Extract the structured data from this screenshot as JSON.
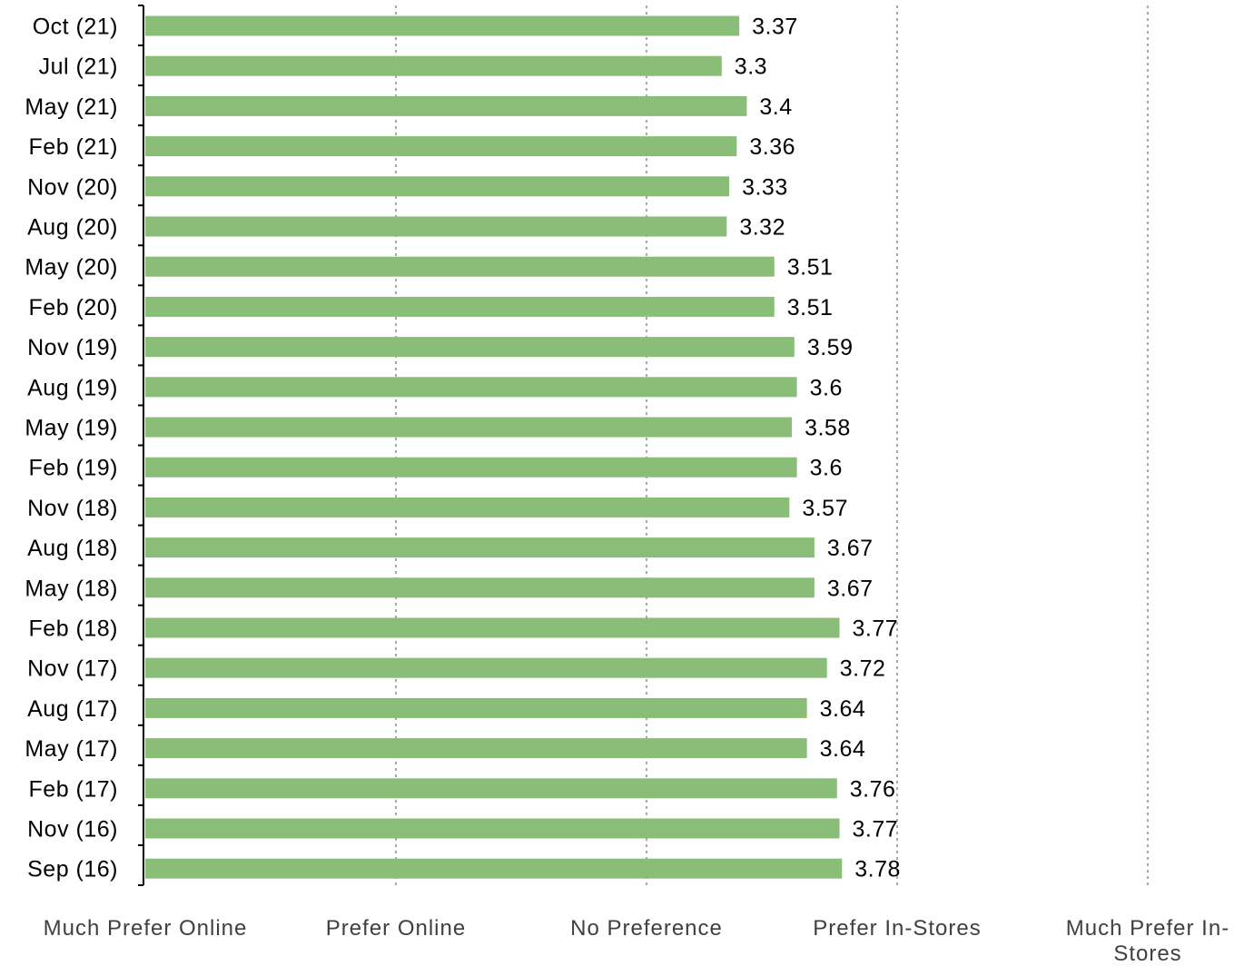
{
  "chart_data": {
    "type": "bar",
    "orientation": "horizontal",
    "categories": [
      "Oct (21)",
      "Jul (21)",
      "May (21)",
      "Feb (21)",
      "Nov (20)",
      "Aug (20)",
      "May (20)",
      "Feb (20)",
      "Nov (19)",
      "Aug (19)",
      "May (19)",
      "Feb (19)",
      "Nov (18)",
      "Aug (18)",
      "May (18)",
      "Feb (18)",
      "Nov (17)",
      "Aug (17)",
      "May (17)",
      "Feb (17)",
      "Nov (16)",
      "Sep (16)"
    ],
    "values": [
      3.37,
      3.3,
      3.4,
      3.36,
      3.33,
      3.32,
      3.51,
      3.51,
      3.59,
      3.6,
      3.58,
      3.6,
      3.57,
      3.67,
      3.67,
      3.77,
      3.72,
      3.64,
      3.64,
      3.76,
      3.77,
      3.78
    ],
    "value_labels": [
      "3.37",
      "3.3",
      "3.4",
      "3.36",
      "3.33",
      "3.32",
      "3.51",
      "3.51",
      "3.59",
      "3.6",
      "3.58",
      "3.6",
      "3.57",
      "3.67",
      "3.67",
      "3.77",
      "3.72",
      "3.64",
      "3.64",
      "3.76",
      "3.77",
      "3.78"
    ],
    "x_tick_values": [
      1,
      2,
      3,
      4,
      5
    ],
    "x_tick_labels": [
      [
        "Much Prefer Online"
      ],
      [
        "Prefer Online"
      ],
      [
        "No Preference"
      ],
      [
        "Prefer In-Stores"
      ],
      [
        "Much Prefer In-",
        "Stores"
      ]
    ],
    "xlim": [
      1,
      5
    ],
    "bar_color": "#8abd78",
    "gridlines": "vertical dotted",
    "legend": "none",
    "title": "",
    "xlabel": "",
    "ylabel": ""
  }
}
